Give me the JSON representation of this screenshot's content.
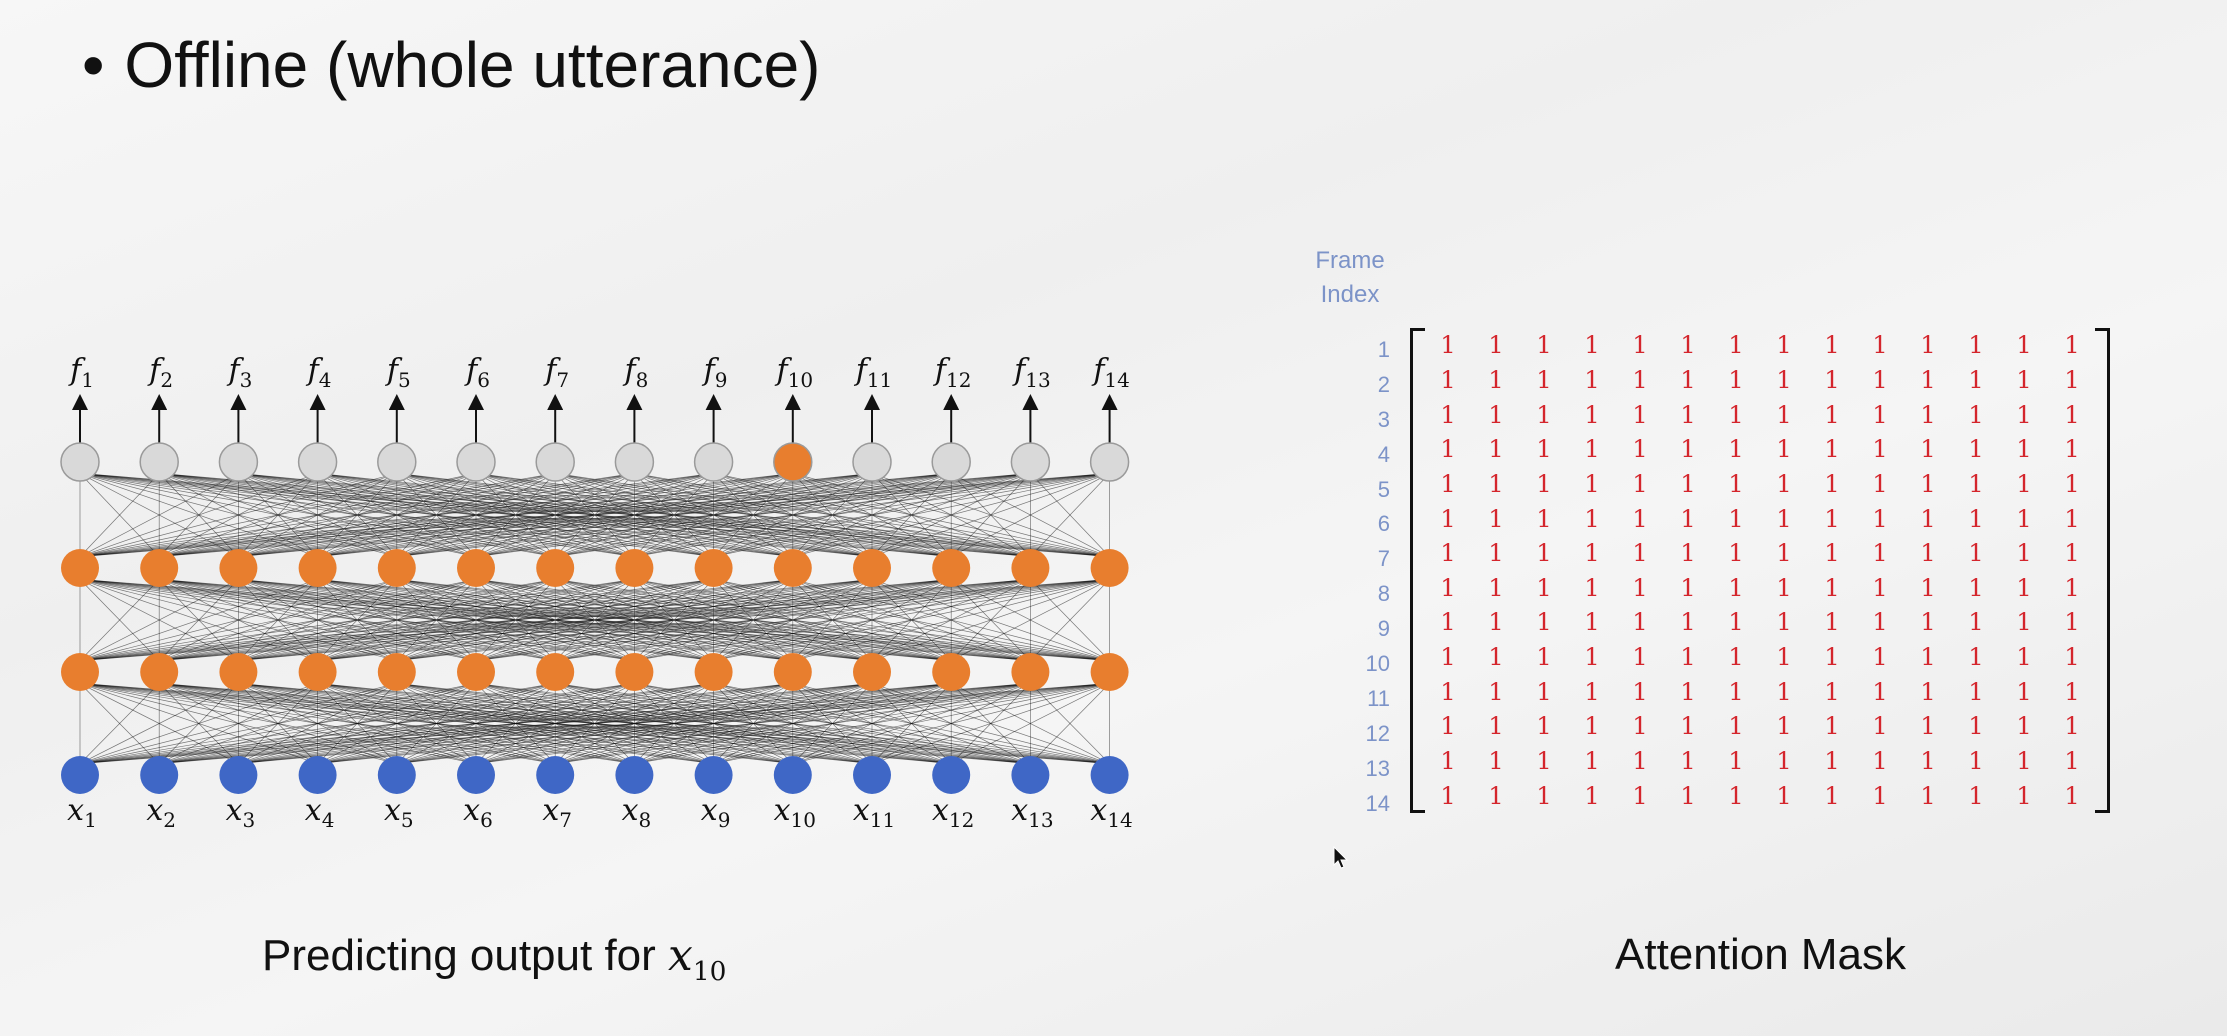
{
  "title": "Offline (whole utterance)",
  "bullet": "•",
  "network": {
    "output_labels": [
      "f1",
      "f2",
      "f3",
      "f4",
      "f5",
      "f6",
      "f7",
      "f8",
      "f9",
      "f10",
      "f11",
      "f12",
      "f13",
      "f14"
    ],
    "input_labels": [
      "x1",
      "x2",
      "x3",
      "x4",
      "x5",
      "x6",
      "x7",
      "x8",
      "x9",
      "x10",
      "x11",
      "x12",
      "x13",
      "x14"
    ],
    "highlighted_output_index": 10,
    "colors": {
      "output": "#d9d9d9",
      "hidden": "#e87e2e",
      "highlight": "#e87e2e",
      "input": "#3f67c6",
      "edge": "#111111"
    }
  },
  "caption_left": {
    "text": "Predicting output for ",
    "var": "x",
    "sub": "10"
  },
  "attention_mask": {
    "frame_index_label": [
      "Frame",
      "Index"
    ],
    "row_labels": [
      "1",
      "2",
      "3",
      "4",
      "5",
      "6",
      "7",
      "8",
      "9",
      "10",
      "11",
      "12",
      "13",
      "14"
    ],
    "matrix": [
      [
        1,
        1,
        1,
        1,
        1,
        1,
        1,
        1,
        1,
        1,
        1,
        1,
        1,
        1
      ],
      [
        1,
        1,
        1,
        1,
        1,
        1,
        1,
        1,
        1,
        1,
        1,
        1,
        1,
        1
      ],
      [
        1,
        1,
        1,
        1,
        1,
        1,
        1,
        1,
        1,
        1,
        1,
        1,
        1,
        1
      ],
      [
        1,
        1,
        1,
        1,
        1,
        1,
        1,
        1,
        1,
        1,
        1,
        1,
        1,
        1
      ],
      [
        1,
        1,
        1,
        1,
        1,
        1,
        1,
        1,
        1,
        1,
        1,
        1,
        1,
        1
      ],
      [
        1,
        1,
        1,
        1,
        1,
        1,
        1,
        1,
        1,
        1,
        1,
        1,
        1,
        1
      ],
      [
        1,
        1,
        1,
        1,
        1,
        1,
        1,
        1,
        1,
        1,
        1,
        1,
        1,
        1
      ],
      [
        1,
        1,
        1,
        1,
        1,
        1,
        1,
        1,
        1,
        1,
        1,
        1,
        1,
        1
      ],
      [
        1,
        1,
        1,
        1,
        1,
        1,
        1,
        1,
        1,
        1,
        1,
        1,
        1,
        1
      ],
      [
        1,
        1,
        1,
        1,
        1,
        1,
        1,
        1,
        1,
        1,
        1,
        1,
        1,
        1
      ],
      [
        1,
        1,
        1,
        1,
        1,
        1,
        1,
        1,
        1,
        1,
        1,
        1,
        1,
        1
      ],
      [
        1,
        1,
        1,
        1,
        1,
        1,
        1,
        1,
        1,
        1,
        1,
        1,
        1,
        1
      ],
      [
        1,
        1,
        1,
        1,
        1,
        1,
        1,
        1,
        1,
        1,
        1,
        1,
        1,
        1
      ],
      [
        1,
        1,
        1,
        1,
        1,
        1,
        1,
        1,
        1,
        1,
        1,
        1,
        1,
        1
      ]
    ],
    "caption": "Attention Mask"
  }
}
